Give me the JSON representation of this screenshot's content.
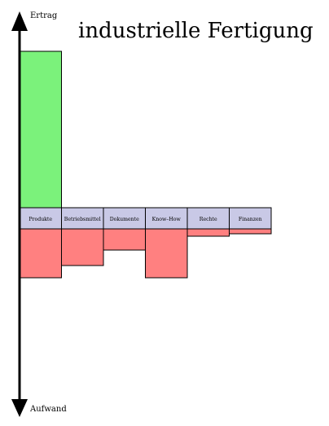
{
  "title": "industrielle Fertigung",
  "axis": {
    "top_label": "Ertrag",
    "bottom_label": "Aufwand"
  },
  "colors": {
    "ertrag": "#7bf27b",
    "aufwand": "#ff8080",
    "category_band": "#c9c9e6",
    "axis": "#000000"
  },
  "chart_data": {
    "type": "bar",
    "categories": [
      "Produkte",
      "Betriebsmittel",
      "Dokumente",
      "Know–How",
      "Rechte",
      "Finanzen"
    ],
    "series": [
      {
        "name": "Ertrag",
        "values": [
          192,
          0,
          0,
          0,
          0,
          0
        ]
      },
      {
        "name": "Aufwand",
        "values": [
          60,
          45,
          26,
          60,
          9,
          6
        ]
      }
    ],
    "ylim": [
      -200,
      200
    ],
    "grid": false
  }
}
